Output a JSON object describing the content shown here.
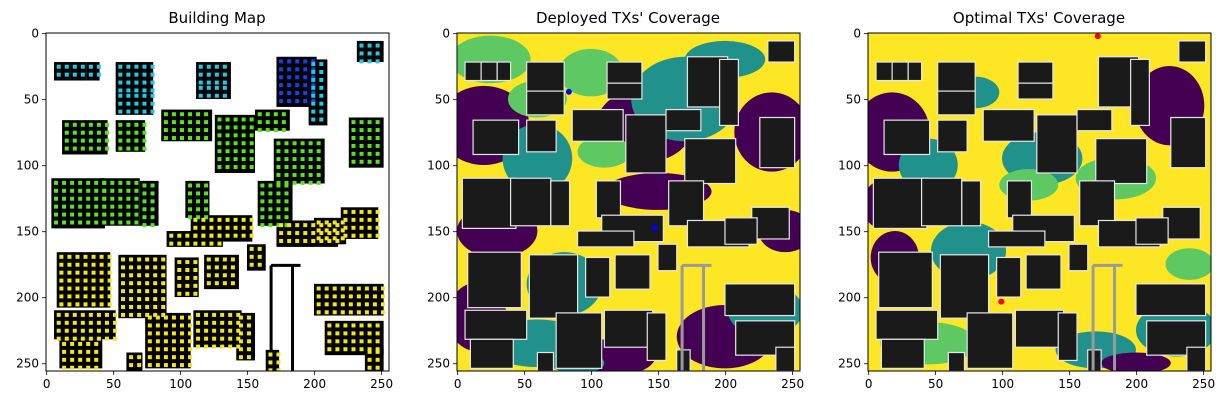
{
  "chart_data": [
    {
      "type": "heatmap",
      "title": "Building Map",
      "xlim": [
        0,
        255
      ],
      "ylim": [
        255,
        0
      ],
      "xticks": [
        0,
        50,
        100,
        150,
        200,
        250
      ],
      "yticks": [
        0,
        50,
        100,
        150,
        200,
        250
      ],
      "tx_markers": [],
      "colors": {
        "background": "#ffffff",
        "building": "#000000",
        "marker_green": "#55e619",
        "marker_yellow": "#f2e616",
        "marker_cyan": "#1ecbe6",
        "marker_blue": "#1340f0"
      }
    },
    {
      "type": "heatmap",
      "title": "Deployed TXs' Coverage",
      "xlim": [
        0,
        255
      ],
      "ylim": [
        255,
        0
      ],
      "xticks": [
        0,
        50,
        100,
        150,
        200,
        250
      ],
      "yticks": [
        0,
        50,
        100,
        150,
        200,
        250
      ],
      "tx_markers": [
        {
          "x": 83,
          "y": 44
        },
        {
          "x": 147,
          "y": 147
        }
      ],
      "tx_color": "#0000ff",
      "colors": {
        "yellow": "#fde725",
        "green": "#5ec962",
        "teal": "#21918c",
        "purple": "#440154",
        "building": "#1a1a1a",
        "edge": "#e6e6e6"
      }
    },
    {
      "type": "heatmap",
      "title": "Optimal TXs' Coverage",
      "xlim": [
        0,
        255
      ],
      "ylim": [
        255,
        0
      ],
      "xticks": [
        0,
        50,
        100,
        150,
        200,
        250
      ],
      "yticks": [
        0,
        50,
        100,
        150,
        200,
        250
      ],
      "tx_markers": [
        {
          "x": 171,
          "y": 2
        },
        {
          "x": 99,
          "y": 203
        }
      ],
      "tx_color": "#ff0000",
      "colors": {
        "yellow": "#fde725",
        "green": "#5ec962",
        "teal": "#21918c",
        "purple": "#440154",
        "building": "#1a1a1a",
        "edge": "#e6e6e6"
      }
    }
  ]
}
